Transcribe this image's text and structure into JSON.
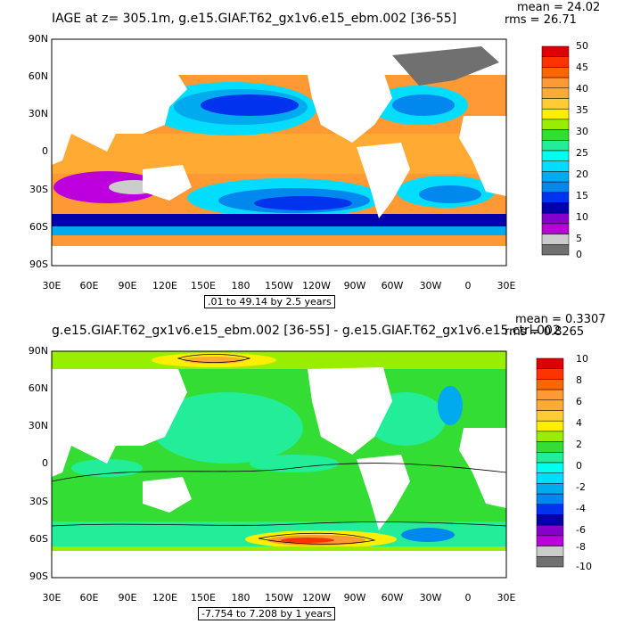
{
  "panels": [
    {
      "title": "IAGE at z=  305.1m, g.e15.GIAF.T62_gx1v6.e15_ebm.002 [36-55]",
      "mean_label": "mean = 24.02",
      "rms_label": "rms = 26.71",
      "range_label": ".01 to 49.14 by 2.5 years",
      "lat_labels": [
        "90N",
        "60N",
        "30N",
        "0",
        "30S",
        "60S",
        "90S"
      ],
      "lon_labels": [
        "30E",
        "60E",
        "90E",
        "120E",
        "150E",
        "180",
        "150W",
        "120W",
        "90W",
        "60W",
        "30W",
        "0",
        "30E"
      ],
      "colorbar": {
        "labels": [
          "50",
          "45",
          "40",
          "35",
          "30",
          "25",
          "20",
          "15",
          "10",
          "5",
          "0"
        ],
        "colors": [
          "#dd0000",
          "#ff3300",
          "#ff6600",
          "#ff9933",
          "#ffaa33",
          "#ffcc33",
          "#ffee00",
          "#99ee00",
          "#33dd33",
          "#22ee99",
          "#00ffee",
          "#00ddff",
          "#00aaee",
          "#0088ee",
          "#0033ee",
          "#0000aa",
          "#8800cc",
          "#bb00dd",
          "#cccccc",
          "#707070"
        ]
      }
    },
    {
      "title": "g.e15.GIAF.T62_gx1v6.e15_ebm.002 [36-55] - g.e15.GIAF.T62_gx1v6.e15.ctrl.002",
      "mean_label": "mean = 0.3307",
      "rms_label": "rms = 0.8265",
      "range_label": "-7.754 to 7.208 by 1 years",
      "lat_labels": [
        "90N",
        "60N",
        "30N",
        "0",
        "30S",
        "60S",
        "90S"
      ],
      "lon_labels": [
        "30E",
        "60E",
        "90E",
        "120E",
        "150E",
        "180",
        "150W",
        "120W",
        "90W",
        "60W",
        "30W",
        "0",
        "30E"
      ],
      "colorbar": {
        "labels": [
          "10",
          "8",
          "6",
          "4",
          "2",
          "0",
          "-2",
          "-4",
          "-6",
          "-8",
          "-10"
        ],
        "colors": [
          "#dd0000",
          "#ff3300",
          "#ff6600",
          "#ff9933",
          "#ffaa33",
          "#ffcc33",
          "#ffee00",
          "#99ee00",
          "#33dd33",
          "#22ee99",
          "#00ffee",
          "#00ddff",
          "#00aaee",
          "#0088ee",
          "#0033ee",
          "#0000aa",
          "#8800cc",
          "#bb00dd",
          "#cccccc",
          "#707070"
        ]
      }
    }
  ]
}
